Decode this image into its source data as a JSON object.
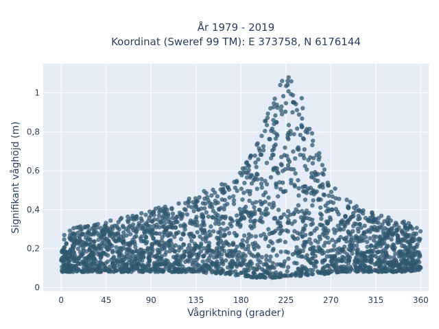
{
  "chart_data": {
    "type": "scatter",
    "title_line1": "År 1979 - 2019",
    "title_line2": "Koordinat (Sweref 99 TM): E 373758, N 6176144",
    "xlabel": "Vågriktning (grader)",
    "ylabel": "Signifikant våghöjd (m)",
    "xlim": [
      -18,
      368
    ],
    "ylim": [
      -0.02,
      1.15
    ],
    "x_ticks": [
      0,
      45,
      90,
      135,
      180,
      225,
      270,
      315,
      360
    ],
    "x_tick_labels": [
      "0",
      "45",
      "90",
      "135",
      "180",
      "225",
      "270",
      "315",
      "360"
    ],
    "y_ticks": [
      0,
      0.2,
      0.4,
      0.6,
      0.8,
      1.0
    ],
    "y_tick_labels": [
      "0",
      "0,2",
      "0,4",
      "0,6",
      "0,8",
      "1"
    ],
    "grid": true,
    "colors": {
      "plot_bg": "#e5ecf6",
      "grid": "#ffffff",
      "marker": "#2f5870"
    },
    "envelope": {
      "x": [
        0,
        20,
        45,
        70,
        90,
        110,
        135,
        160,
        180,
        195,
        205,
        215,
        225,
        235,
        245,
        255,
        265,
        280,
        300,
        320,
        340,
        360
      ],
      "upper": [
        0.28,
        0.32,
        0.34,
        0.37,
        0.4,
        0.43,
        0.48,
        0.53,
        0.6,
        0.72,
        0.9,
        1.03,
        1.1,
        1.05,
        0.92,
        0.76,
        0.58,
        0.47,
        0.41,
        0.37,
        0.35,
        0.31
      ],
      "lower": [
        0.08,
        0.08,
        0.08,
        0.08,
        0.08,
        0.08,
        0.08,
        0.07,
        0.06,
        0.05,
        0.05,
        0.05,
        0.06,
        0.06,
        0.06,
        0.07,
        0.07,
        0.08,
        0.08,
        0.08,
        0.08,
        0.09
      ]
    }
  }
}
